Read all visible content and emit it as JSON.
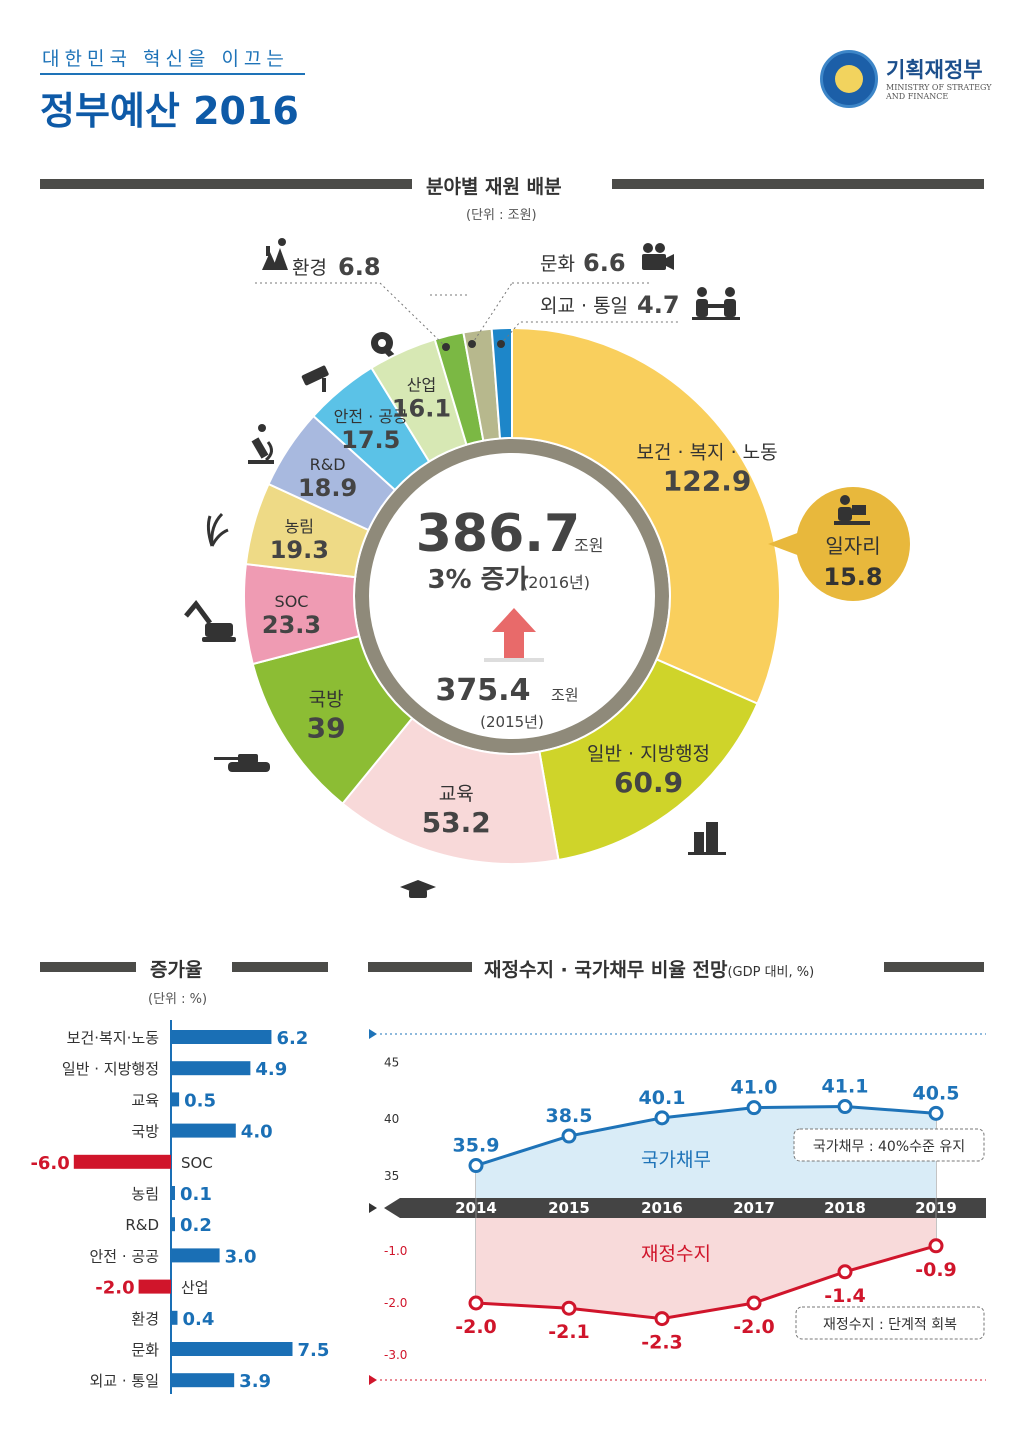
{
  "header": {
    "subtitle": "대한민국 혁신을 이끄는",
    "title": "정부예산 2016",
    "ministry_ko": "기획재정부",
    "ministry_en_line1": "MINISTRY OF STRATEGY",
    "ministry_en_line2": "AND FINANCE"
  },
  "colors": {
    "accent": "#1e73b8",
    "bar_positive": "#1a6fb5",
    "bar_negative": "#d0152b",
    "debt_line": "#1e73b8",
    "balance_line": "#d0152b",
    "section_bar": "#4b4b48"
  },
  "sections": {
    "allocation": {
      "title": "분야별 재원 배분",
      "unit": "(단위 : 조원)"
    },
    "growth": {
      "title": "증가율",
      "unit": "(단위 : %)"
    },
    "outlook": {
      "title": "재정수지 · 국가채무 비율 전망",
      "title_note": "(GDP 대비, %)"
    }
  },
  "center": {
    "total_2016": "386.7",
    "total_unit": "조원",
    "increase": "3% 증가",
    "increase_year": "(2016년)",
    "total_2015": "375.4",
    "total_2015_unit": "조원",
    "year_2015": "(2015년)"
  },
  "callout": {
    "label": "일자리",
    "value": "15.8"
  },
  "chart_data": [
    {
      "type": "pie",
      "title": "분야별 재원 배분",
      "unit": "조원",
      "categories": [
        "보건 · 복지 · 노동",
        "일반 · 지방행정",
        "교육",
        "국방",
        "SOC",
        "농림",
        "R&D",
        "안전 · 공공",
        "산업",
        "환경",
        "문화",
        "외교 · 통일"
      ],
      "values": [
        122.9,
        60.9,
        53.2,
        39,
        23.3,
        19.3,
        18.9,
        17.5,
        16.1,
        6.8,
        6.6,
        4.7
      ],
      "labels": [
        "122.9",
        "60.9",
        "53.2",
        "39",
        "23.3",
        "19.3",
        "18.9",
        "17.5",
        "16.1",
        "6.8",
        "6.6",
        "4.7"
      ],
      "colors": [
        "#f9cf5d",
        "#cfd42a",
        "#f8d9d9",
        "#8cbd34",
        "#ef9bb3",
        "#eeda86",
        "#a8b9df",
        "#5bc2e7",
        "#d7e8b4",
        "#7bb844",
        "#b7b88d",
        "#1d86c9"
      ]
    },
    {
      "type": "bar",
      "title": "증가율",
      "unit": "%",
      "categories": [
        "보건·복지·노동",
        "일반 · 지방행정",
        "교육",
        "국방",
        "SOC",
        "농림",
        "R&D",
        "안전 · 공공",
        "산업",
        "환경",
        "문화",
        "외교 · 통일"
      ],
      "values": [
        6.2,
        4.9,
        0.5,
        4.0,
        -6.0,
        0.1,
        0.2,
        3.0,
        -2.0,
        0.4,
        7.5,
        3.9
      ],
      "labels": [
        "6.2",
        "4.9",
        "0.5",
        "4.0",
        "-6.0",
        "0.1",
        "0.2",
        "3.0",
        "-2.0",
        "0.4",
        "7.5",
        "3.9"
      ]
    },
    {
      "type": "line",
      "title": "재정수지 · 국가채무 비율 전망",
      "unit": "GDP 대비, %",
      "x": [
        "2014",
        "2015",
        "2016",
        "2017",
        "2018",
        "2019"
      ],
      "series": [
        {
          "name": "국가채무",
          "values": [
            35.9,
            38.5,
            40.1,
            41.0,
            41.1,
            40.5
          ],
          "labels": [
            "35.9",
            "38.5",
            "40.1",
            "41.0",
            "41.1",
            "40.5"
          ]
        },
        {
          "name": "재정수지",
          "values": [
            -2.0,
            -2.1,
            -2.3,
            -2.0,
            -1.4,
            -0.9
          ],
          "labels": [
            "-2.0",
            "-2.1",
            "-2.3",
            "-2.0",
            "-1.4",
            "-0.9"
          ]
        }
      ],
      "upper_axis_ticks": [
        "45",
        "40",
        "35"
      ],
      "lower_axis_ticks": [
        "-1.0",
        "-2.0",
        "-3.0"
      ],
      "notes": {
        "debt": "국가채무 : 40%수준 유지",
        "balance": "재정수지 : 단계적 회복"
      }
    }
  ]
}
